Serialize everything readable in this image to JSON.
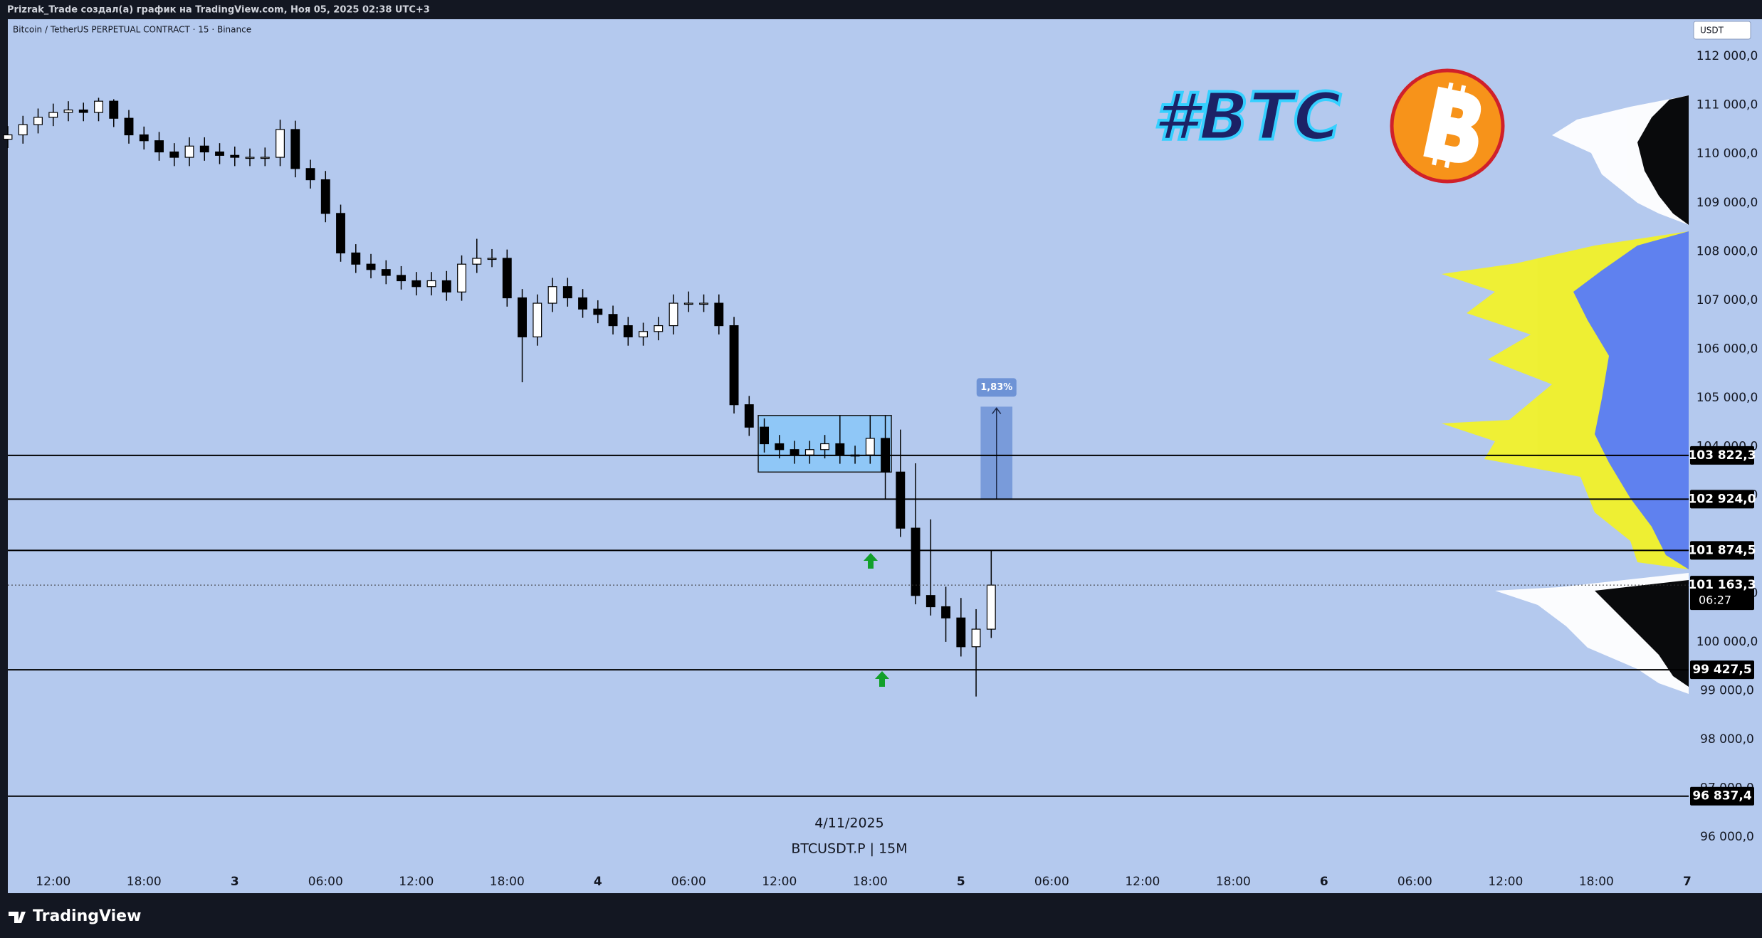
{
  "header": "Prizrak_Trade создал(а) график на TradingView.com, Ноя 05, 2025 02:38 UTC+3",
  "footer": "TradingView",
  "chart_data": {
    "type": "candlestick",
    "title": "Bitcoin / TetherUS PERPETUAL CONTRACT · 15 · Binance",
    "currency": "USDT",
    "logo_text": "#BTC",
    "annotations": [
      "4/11/2025",
      "BTCUSDT.P | 15M"
    ],
    "up_color": "#ffffff",
    "down_color": "#000000",
    "x": [
      -3,
      -2,
      -1,
      0,
      1,
      2,
      3,
      4,
      5,
      6,
      7,
      8,
      9,
      10,
      11,
      12,
      13,
      14,
      15,
      16,
      17,
      18,
      19,
      20,
      21,
      22,
      23,
      24,
      25,
      26,
      27,
      28,
      29,
      30,
      31,
      32,
      33,
      34,
      35,
      36,
      37,
      38,
      39,
      40,
      41,
      42,
      43,
      44,
      45,
      46,
      47,
      48,
      49,
      50,
      51,
      52,
      53,
      54,
      55,
      56,
      57,
      58,
      59,
      60,
      61,
      62
    ],
    "open": [
      110300,
      110390,
      110600,
      110750,
      110850,
      110900,
      110850,
      111080,
      110730,
      110390,
      110270,
      110040,
      109930,
      110160,
      110040,
      109970,
      109930,
      109930,
      109930,
      110500,
      109700,
      109470,
      108780,
      107970,
      107740,
      107630,
      107510,
      107400,
      107280,
      107400,
      107170,
      107740,
      107860,
      107860,
      107050,
      106250,
      106940,
      107280,
      107050,
      106820,
      106710,
      106480,
      106250,
      106360,
      106480,
      106940,
      106940,
      106940,
      106480,
      104860,
      104400,
      104060,
      103940,
      103830,
      103940,
      104060,
      103830,
      103830,
      104170,
      103480,
      102330,
      100950,
      100720,
      100490,
      99900,
      100260
    ],
    "high": [
      110570,
      110780,
      110930,
      111030,
      111080,
      111050,
      111150,
      111120,
      110900,
      110560,
      110450,
      110220,
      110340,
      110340,
      110220,
      110150,
      110110,
      110130,
      110700,
      110680,
      109880,
      109650,
      108960,
      108150,
      107950,
      107820,
      107700,
      107580,
      107580,
      107600,
      107920,
      108260,
      108050,
      108040,
      107230,
      107120,
      107460,
      107460,
      107230,
      107000,
      106890,
      106660,
      106540,
      106660,
      107120,
      107180,
      107120,
      107120,
      106660,
      105040,
      104580,
      104240,
      104120,
      104120,
      104240,
      104640,
      104020,
      104640,
      104640,
      104350,
      103660,
      102510,
      101130,
      100900,
      100670,
      101870
    ],
    "low": [
      110120,
      110210,
      110420,
      110570,
      110670,
      110670,
      110670,
      110550,
      110210,
      110090,
      109860,
      109750,
      109750,
      109860,
      109790,
      109750,
      109750,
      109750,
      109750,
      109520,
      109290,
      108600,
      107790,
      107560,
      107450,
      107330,
      107220,
      107100,
      107100,
      106990,
      106990,
      107560,
      107680,
      106870,
      105320,
      106070,
      106760,
      106870,
      106640,
      106530,
      106300,
      106070,
      106070,
      106180,
      106300,
      106760,
      106760,
      106300,
      104680,
      104220,
      103880,
      103760,
      103650,
      103650,
      103760,
      103650,
      103650,
      103650,
      102920,
      102150,
      100770,
      100540,
      100000,
      99700,
      98880,
      100080
    ],
    "close": [
      110390,
      110600,
      110750,
      110850,
      110900,
      110850,
      111080,
      110730,
      110390,
      110270,
      110040,
      109930,
      110160,
      110040,
      109970,
      109930,
      109930,
      109930,
      110500,
      109700,
      109470,
      108780,
      107970,
      107740,
      107630,
      107510,
      107400,
      107280,
      107400,
      107170,
      107740,
      107860,
      107860,
      107050,
      106250,
      106940,
      107280,
      107050,
      106820,
      106710,
      106480,
      106250,
      106360,
      106480,
      106940,
      106940,
      106940,
      106480,
      104860,
      104400,
      104060,
      103940,
      103830,
      103940,
      104060,
      103830,
      103830,
      104170,
      103480,
      102330,
      100950,
      100720,
      100490,
      99900,
      100260,
      101163.3
    ],
    "xlim": [
      -3,
      108.1
    ],
    "xticks": [
      {
        "value": 0,
        "label": "12:00"
      },
      {
        "value": 6,
        "label": "18:00"
      },
      {
        "value": 12,
        "label": "3"
      },
      {
        "value": 18,
        "label": "06:00"
      },
      {
        "value": 24,
        "label": "12:00"
      },
      {
        "value": 30,
        "label": "18:00"
      },
      {
        "value": 36,
        "label": "4"
      },
      {
        "value": 42,
        "label": "06:00"
      },
      {
        "value": 48,
        "label": "12:00"
      },
      {
        "value": 54,
        "label": "18:00"
      },
      {
        "value": 60,
        "label": "5"
      },
      {
        "value": 66,
        "label": "06:00"
      },
      {
        "value": 72,
        "label": "12:00"
      },
      {
        "value": 78,
        "label": "18:00"
      },
      {
        "value": 84,
        "label": "6"
      },
      {
        "value": 90,
        "label": "06:00"
      },
      {
        "value": 96,
        "label": "12:00"
      },
      {
        "value": 102,
        "label": "18:00"
      },
      {
        "value": 108,
        "label": "7"
      }
    ],
    "ylim": [
      94850,
      112760
    ],
    "yticks": [
      {
        "value": 96000,
        "label": "96 000,0"
      },
      {
        "value": 97000,
        "label": "97 000,0"
      },
      {
        "value": 98000,
        "label": "98 000,0"
      },
      {
        "value": 99000,
        "label": "99 000,0"
      },
      {
        "value": 100000,
        "label": "100 000,0"
      },
      {
        "value": 101000,
        "label": "101 000,0"
      },
      {
        "value": 103000,
        "label": "103 000,0"
      },
      {
        "value": 104000,
        "label": "104 000,0"
      },
      {
        "value": 105000,
        "label": "105 000,0"
      },
      {
        "value": 106000,
        "label": "106 000,0"
      },
      {
        "value": 107000,
        "label": "107 000,0"
      },
      {
        "value": 108000,
        "label": "108 000,0"
      },
      {
        "value": 109000,
        "label": "109 000,0"
      },
      {
        "value": 110000,
        "label": "110 000,0"
      },
      {
        "value": 111000,
        "label": "111 000,0"
      },
      {
        "value": 112000,
        "label": "112 000,0"
      }
    ],
    "grid": false,
    "levels": [
      {
        "value": 103822.3,
        "label": "103 822,3"
      },
      {
        "value": 102924.0,
        "label": "102 924,0"
      },
      {
        "value": 101874.5,
        "label": "101 874,5"
      },
      {
        "value": 99427.5,
        "label": "99 427,5"
      },
      {
        "value": 96837.4,
        "label": "96 837,4"
      }
    ],
    "last_price": {
      "value": 101163.3,
      "label": "101 163,3"
    },
    "countdown": "06:27",
    "zone": {
      "x": [
        46.6,
        55.4
      ],
      "y": [
        103480,
        104640
      ]
    },
    "measure": {
      "x": [
        61.3,
        63.4
      ],
      "y": [
        102924,
        104820
      ],
      "label": "1,83%"
    }
  }
}
